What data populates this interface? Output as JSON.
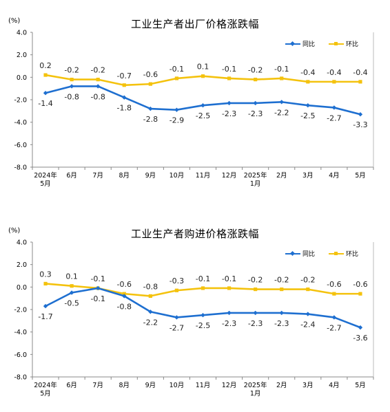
{
  "chart_data": [
    {
      "type": "line",
      "title": "工业生产者出厂价格涨跌幅",
      "unit": "(%)",
      "ylim": [
        -8.0,
        4.0
      ],
      "yticks": [
        "4.0",
        "2.0",
        "0.0",
        "-2.0",
        "-4.0",
        "-6.0",
        "-8.0"
      ],
      "categories": [
        [
          "2024年",
          "5月"
        ],
        [
          "6月"
        ],
        [
          "7月"
        ],
        [
          "8月"
        ],
        [
          "9月"
        ],
        [
          "10月"
        ],
        [
          "11月"
        ],
        [
          "12月"
        ],
        [
          "2025年",
          "1月"
        ],
        [
          "2月"
        ],
        [
          "3月"
        ],
        [
          "4月"
        ],
        [
          "5月"
        ]
      ],
      "legend_position": "top-right",
      "grid": false,
      "series": [
        {
          "name": "同比",
          "color": "#1E6FD0",
          "values": [
            -1.4,
            -0.8,
            -0.8,
            -1.8,
            -2.8,
            -2.9,
            -2.5,
            -2.3,
            -2.3,
            -2.2,
            -2.5,
            -2.7,
            -3.3
          ],
          "labels": [
            "-1.4",
            "-0.8",
            "-0.8",
            "-1.8",
            "-2.8",
            "-2.9",
            "-2.5",
            "-2.3",
            "-2.3",
            "-2.2",
            "-2.5",
            "-2.7",
            "-3.3"
          ]
        },
        {
          "name": "环比",
          "color": "#F4C20D",
          "values": [
            0.2,
            -0.2,
            -0.2,
            -0.7,
            -0.6,
            -0.1,
            0.1,
            -0.1,
            -0.2,
            -0.1,
            -0.4,
            -0.4,
            -0.4
          ],
          "labels": [
            "0.2",
            "-0.2",
            "-0.2",
            "-0.7",
            "-0.6",
            "-0.1",
            "0.1",
            "-0.1",
            "-0.2",
            "-0.1",
            "-0.4",
            "-0.4",
            "-0.4"
          ]
        }
      ]
    },
    {
      "type": "line",
      "title": "工业生产者购进价格涨跌幅",
      "unit": "(%)",
      "ylim": [
        -8.0,
        4.0
      ],
      "yticks": [
        "4.0",
        "2.0",
        "0.0",
        "-2.0",
        "-4.0",
        "-6.0",
        "-8.0"
      ],
      "categories": [
        [
          "2024年",
          "5月"
        ],
        [
          "6月"
        ],
        [
          "7月"
        ],
        [
          "8月"
        ],
        [
          "9月"
        ],
        [
          "10月"
        ],
        [
          "11月"
        ],
        [
          "12月"
        ],
        [
          "2025年",
          "1月"
        ],
        [
          "2月"
        ],
        [
          "3月"
        ],
        [
          "4月"
        ],
        [
          "5月"
        ]
      ],
      "legend_position": "top-right",
      "grid": false,
      "series": [
        {
          "name": "同比",
          "color": "#1E6FD0",
          "values": [
            -1.7,
            -0.5,
            -0.1,
            -0.8,
            -2.2,
            -2.7,
            -2.5,
            -2.3,
            -2.3,
            -2.3,
            -2.4,
            -2.7,
            -3.6
          ],
          "labels": [
            "-1.7",
            "-0.5",
            "-0.1",
            "-0.8",
            "-2.2",
            "-2.7",
            "-2.5",
            "-2.3",
            "-2.3",
            "-2.3",
            "-2.4",
            "-2.7",
            "-3.6"
          ]
        },
        {
          "name": "环比",
          "color": "#F4C20D",
          "values": [
            0.3,
            0.1,
            -0.1,
            -0.6,
            -0.8,
            -0.3,
            -0.1,
            -0.1,
            -0.2,
            -0.2,
            -0.2,
            -0.6,
            -0.6
          ],
          "labels": [
            "0.3",
            "0.1",
            "-0.1",
            "-0.6",
            "-0.8",
            "-0.3",
            "-0.1",
            "-0.1",
            "-0.2",
            "-0.2",
            "-0.2",
            "-0.6",
            "-0.6"
          ]
        }
      ]
    }
  ]
}
